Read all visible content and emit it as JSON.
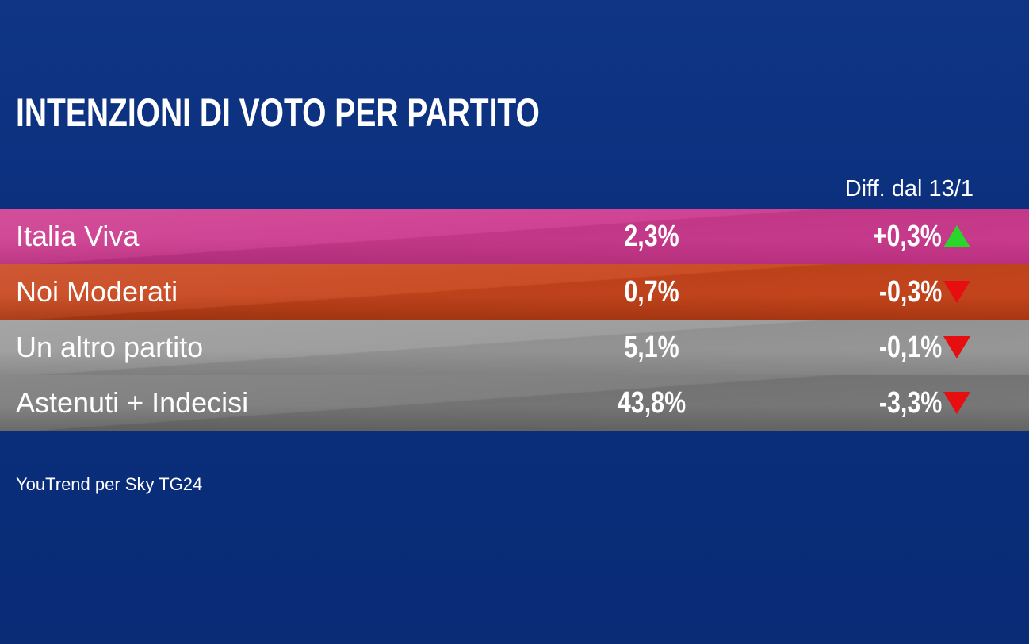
{
  "chart_data": {
    "type": "table",
    "title": "INTENZIONI DI VOTO PER PARTITO",
    "diff_header": "Diff. dal 13/1",
    "rows": [
      {
        "name": "Italia Viva",
        "value": "2,3%",
        "diff": "+0,3%",
        "trend": "up",
        "color": "#cd3b8f",
        "color_dark": "#b9307f"
      },
      {
        "name": "Noi Moderati",
        "value": "0,7%",
        "diff": "-0,3%",
        "trend": "down",
        "color": "#c8461d",
        "color_dark": "#a83712"
      },
      {
        "name": "Un altro partito",
        "value": "5,1%",
        "diff": "-0,1%",
        "trend": "down",
        "color": "#9a9a9a",
        "color_dark": "#858585"
      },
      {
        "name": "Astenuti + Indecisi",
        "value": "43,8%",
        "diff": "-3,3%",
        "trend": "down",
        "color": "#7a7a7a",
        "color_dark": "#646464"
      }
    ],
    "source": "YouTrend per Sky TG24",
    "colors": {
      "up_arrow": "#2bd62b",
      "down_arrow": "#e60e0e",
      "background": "#0b2f7c"
    }
  }
}
